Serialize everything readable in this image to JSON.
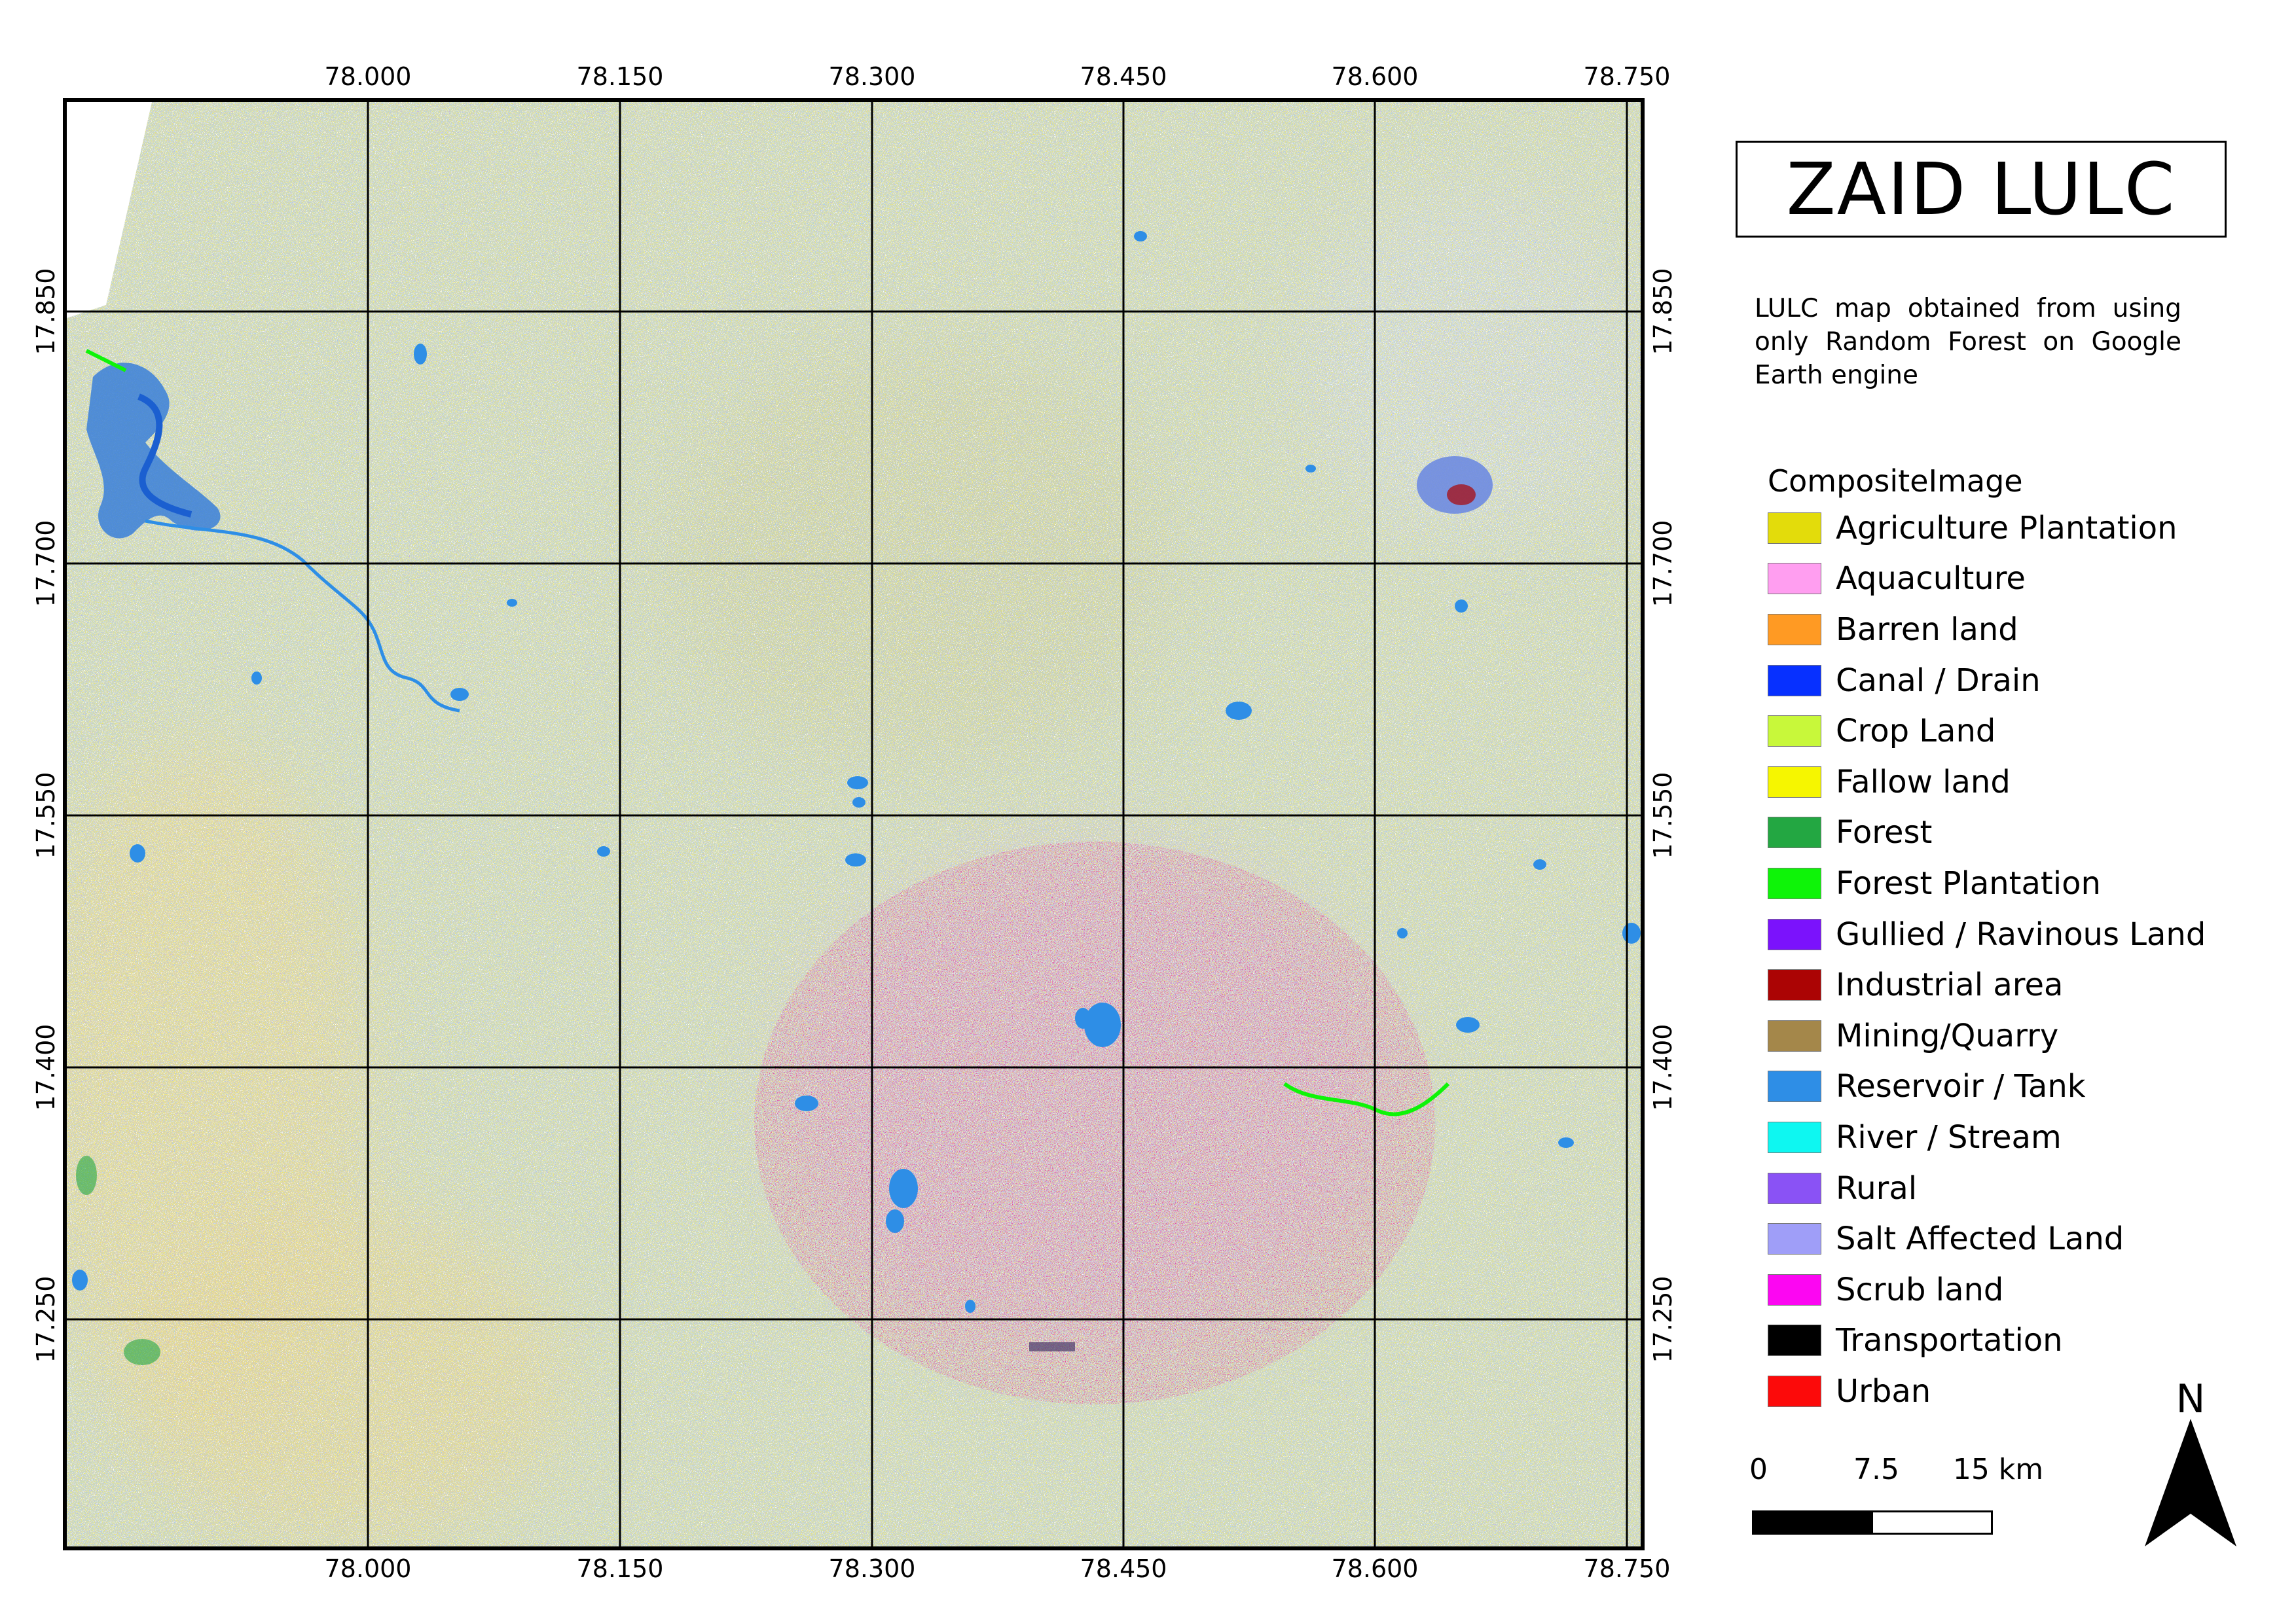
{
  "title": "ZAID LULC",
  "description": "LULC map obtained from using only Random Forest on Google Earth engine",
  "map": {
    "longitude_ticks": [
      "78.000",
      "78.150",
      "78.300",
      "78.450",
      "78.600",
      "78.750"
    ],
    "latitude_ticks": [
      "17.850",
      "17.700",
      "17.550",
      "17.400",
      "17.250"
    ]
  },
  "legend": {
    "title": "CompositeImage",
    "items": [
      {
        "label": "Agriculture Plantation",
        "color": "#e3dc0b"
      },
      {
        "label": "Aquaculture",
        "color": "#ff9ef0"
      },
      {
        "label": "Barren land",
        "color": "#ff9a23"
      },
      {
        "label": "Canal / Drain",
        "color": "#0730ff"
      },
      {
        "label": "Crop Land",
        "color": "#c8f83a"
      },
      {
        "label": "Fallow land",
        "color": "#f6f600"
      },
      {
        "label": "Forest",
        "color": "#23a742"
      },
      {
        "label": "Forest Plantation",
        "color": "#0ef408"
      },
      {
        "label": "Gullied / Ravinous Land",
        "color": "#7b12fc"
      },
      {
        "label": "Industrial area",
        "color": "#ab0404"
      },
      {
        "label": "Mining/Quarry",
        "color": "#a4874a"
      },
      {
        "label": "Reservoir / Tank",
        "color": "#2e8ee6"
      },
      {
        "label": "River / Stream",
        "color": "#0ef7f1"
      },
      {
        "label": "Rural",
        "color": "#8a52f5"
      },
      {
        "label": "Salt Affected Land",
        "color": "#9f9ef8"
      },
      {
        "label": "Scrub land",
        "color": "#fc06f2"
      },
      {
        "label": "Transportation",
        "color": "#000000"
      },
      {
        "label": "Urban",
        "color": "#fc0a0a"
      }
    ]
  },
  "scale_bar": {
    "labels": [
      "0",
      "7.5",
      "15 km"
    ]
  },
  "north_arrow": {
    "label": "N"
  }
}
